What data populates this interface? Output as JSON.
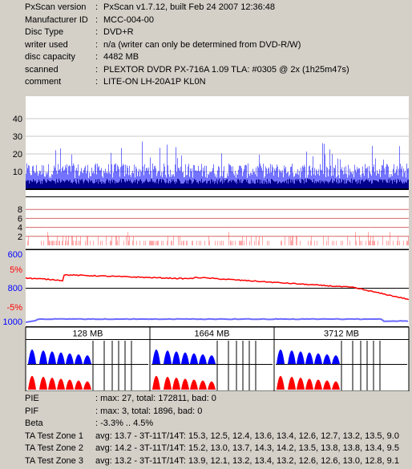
{
  "info": [
    {
      "key": "PxScan version",
      "value": "PxScan v1.7.12, built Feb 24 2007 12:36:48"
    },
    {
      "key": "Manufacturer ID",
      "value": "MCC-004-00"
    },
    {
      "key": "Disc Type",
      "value": "DVD+R"
    },
    {
      "key": "writer used",
      "value": "n/a (writer can only be determined from DVD-R/W)"
    },
    {
      "key": "disc capacity",
      "value": "4482 MB"
    },
    {
      "key": "scanned",
      "value": "PLEXTOR DVDR  PX-716A  1.09 TLA: #0305 @ 2x (1h25m47s)"
    },
    {
      "key": "comment",
      "value": "LITE-ON LH-20A1P KL0N"
    }
  ],
  "chart_data": [
    {
      "type": "area",
      "name": "PIE",
      "yticks": [
        10,
        20,
        30,
        40
      ],
      "ylim": [
        0,
        50
      ],
      "color": "#0000ff",
      "typical_level": 14,
      "peak": 27
    },
    {
      "type": "bar",
      "name": "PIF",
      "yticks": [
        2,
        4,
        6,
        8
      ],
      "ylim": [
        0,
        10
      ],
      "color": "#ff0000",
      "peak": 3
    },
    {
      "type": "line",
      "name": "Beta / Jitter",
      "left_ticks": [
        "600",
        "5%",
        "800",
        "-5%",
        "1000"
      ],
      "left_tick_colors": [
        "#0000ff",
        "#ff0000",
        "#0000ff",
        "#ff0000",
        "#0000ff"
      ],
      "beta_range": [
        -3.3,
        4.5
      ],
      "beta_color": "#ff0000",
      "jitter_color": "#6a6aff"
    },
    {
      "type": "area",
      "name": "TA zones",
      "zone_labels": [
        "128 MB",
        "1664 MB",
        "3712 MB"
      ],
      "colors": [
        "#0000ff",
        "#ff0000"
      ]
    }
  ],
  "stats": [
    {
      "key": "PIE",
      "value": ": max: 27, total: 172811, bad: 0"
    },
    {
      "key": "PIF",
      "value": ": max: 3, total: 1896, bad: 0"
    },
    {
      "key": "Beta",
      "value": ": -3.3% .. 4.5%"
    },
    {
      "key": "TA Test Zone 1",
      "value": "avg: 13.7 - 3T-11T/14T: 15.3, 12.5, 12.4, 13.6, 13.4, 12.6, 12.7, 13.2, 13.5, 9.0"
    },
    {
      "key": "TA Test Zone 2",
      "value": "avg: 14.2 - 3T-11T/14T: 15.2, 13.0, 13.7, 14.3, 14.2, 13.5, 13.8, 13.8, 13.4, 9.5"
    },
    {
      "key": "TA Test Zone 3",
      "value": "avg: 13.2 - 3T-11T/14T: 13.9, 12.1, 13.2, 13.4, 13.2, 12.6, 12.6, 13.0, 12.8, 9.1"
    }
  ]
}
